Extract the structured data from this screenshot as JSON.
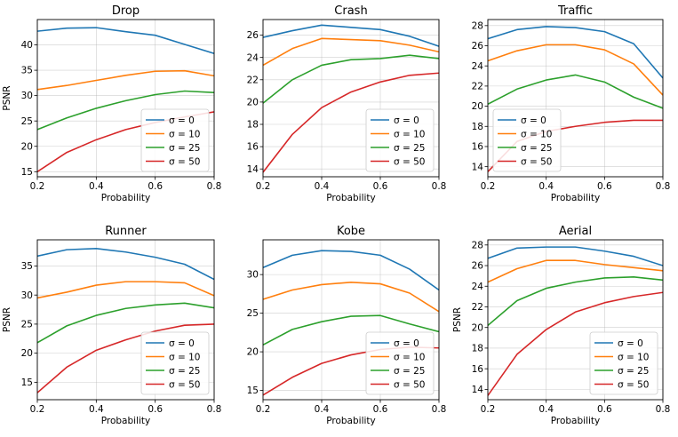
{
  "chart_data": [
    {
      "type": "line",
      "title": "Drop",
      "xlabel": "Probability",
      "ylabel": "PSNR",
      "x": [
        0.2,
        0.3,
        0.4,
        0.5,
        0.6,
        0.7,
        0.8
      ],
      "xticks": [
        "0.2",
        "0.4",
        "0.6",
        "0.8"
      ],
      "yticks": [
        "15",
        "20",
        "25",
        "30",
        "35",
        "40"
      ],
      "xlim": [
        0.2,
        0.8
      ],
      "ylim": [
        14.0,
        45.0
      ],
      "grid": true,
      "legend": "lower-right",
      "series": [
        {
          "name": "σ = 0",
          "color": "#1f77b4",
          "values": [
            42.7,
            43.3,
            43.4,
            42.6,
            41.9,
            40.1,
            38.3
          ]
        },
        {
          "name": "σ = 10",
          "color": "#ff7f0e",
          "values": [
            31.2,
            32.0,
            33.0,
            34.0,
            34.8,
            34.9,
            33.9
          ]
        },
        {
          "name": "σ = 25",
          "color": "#2ca02c",
          "values": [
            23.3,
            25.6,
            27.5,
            29.0,
            30.2,
            30.9,
            30.6
          ]
        },
        {
          "name": "σ = 50",
          "color": "#d62728",
          "values": [
            15.0,
            18.8,
            21.3,
            23.3,
            24.7,
            25.8,
            26.8
          ]
        }
      ]
    },
    {
      "type": "line",
      "title": "Crash",
      "xlabel": "Probability",
      "ylabel": "",
      "x": [
        0.2,
        0.3,
        0.4,
        0.5,
        0.6,
        0.7,
        0.8
      ],
      "xticks": [
        "0.2",
        "0.4",
        "0.6",
        "0.8"
      ],
      "yticks": [
        "14",
        "16",
        "18",
        "20",
        "22",
        "24",
        "26"
      ],
      "xlim": [
        0.2,
        0.8
      ],
      "ylim": [
        13.3,
        27.4
      ],
      "grid": true,
      "legend": "lower-right",
      "series": [
        {
          "name": "σ = 0",
          "color": "#1f77b4",
          "values": [
            25.8,
            26.4,
            26.9,
            26.7,
            26.5,
            25.9,
            25.0
          ]
        },
        {
          "name": "σ = 10",
          "color": "#ff7f0e",
          "values": [
            23.3,
            24.8,
            25.7,
            25.6,
            25.5,
            25.1,
            24.5
          ]
        },
        {
          "name": "σ = 25",
          "color": "#2ca02c",
          "values": [
            19.9,
            22.0,
            23.3,
            23.8,
            23.9,
            24.2,
            23.9
          ]
        },
        {
          "name": "σ = 50",
          "color": "#d62728",
          "values": [
            13.7,
            17.1,
            19.5,
            20.9,
            21.8,
            22.4,
            22.6
          ]
        }
      ]
    },
    {
      "type": "line",
      "title": "Traffic",
      "xlabel": "Probability",
      "ylabel": "",
      "x": [
        0.2,
        0.3,
        0.4,
        0.5,
        0.6,
        0.7,
        0.8
      ],
      "xticks": [
        "0.2",
        "0.4",
        "0.6",
        "0.8"
      ],
      "yticks": [
        "14",
        "16",
        "18",
        "20",
        "22",
        "24",
        "26",
        "28"
      ],
      "xlim": [
        0.2,
        0.8
      ],
      "ylim": [
        13.0,
        28.6
      ],
      "grid": true,
      "legend": "lower-left",
      "series": [
        {
          "name": "σ = 0",
          "color": "#1f77b4",
          "values": [
            26.7,
            27.6,
            27.9,
            27.8,
            27.4,
            26.2,
            22.8
          ]
        },
        {
          "name": "σ = 10",
          "color": "#ff7f0e",
          "values": [
            24.5,
            25.5,
            26.1,
            26.1,
            25.6,
            24.2,
            21.1
          ]
        },
        {
          "name": "σ = 25",
          "color": "#2ca02c",
          "values": [
            20.2,
            21.7,
            22.6,
            23.1,
            22.4,
            20.9,
            19.8
          ]
        },
        {
          "name": "σ = 50",
          "color": "#d62728",
          "values": [
            13.5,
            16.5,
            17.5,
            18.0,
            18.4,
            18.6,
            18.6
          ]
        }
      ]
    },
    {
      "type": "line",
      "title": "Runner",
      "xlabel": "Probability",
      "ylabel": "PSNR",
      "x": [
        0.2,
        0.3,
        0.4,
        0.5,
        0.6,
        0.7,
        0.8
      ],
      "xticks": [
        "0.2",
        "0.4",
        "0.6",
        "0.8"
      ],
      "yticks": [
        "15",
        "20",
        "25",
        "30",
        "35"
      ],
      "xlim": [
        0.2,
        0.8
      ],
      "ylim": [
        12.0,
        39.5
      ],
      "grid": true,
      "legend": "lower-right",
      "series": [
        {
          "name": "σ = 0",
          "color": "#1f77b4",
          "values": [
            36.7,
            37.8,
            38.0,
            37.4,
            36.5,
            35.3,
            32.7
          ]
        },
        {
          "name": "σ = 10",
          "color": "#ff7f0e",
          "values": [
            29.5,
            30.5,
            31.7,
            32.3,
            32.3,
            32.1,
            29.9
          ]
        },
        {
          "name": "σ = 25",
          "color": "#2ca02c",
          "values": [
            21.8,
            24.7,
            26.5,
            27.7,
            28.3,
            28.6,
            27.8
          ]
        },
        {
          "name": "σ = 50",
          "color": "#d62728",
          "values": [
            13.2,
            17.6,
            20.5,
            22.3,
            23.8,
            24.8,
            25.0
          ]
        }
      ]
    },
    {
      "type": "line",
      "title": "Kobe",
      "xlabel": "Probability",
      "ylabel": "",
      "x": [
        0.2,
        0.3,
        0.4,
        0.5,
        0.6,
        0.7,
        0.8
      ],
      "xticks": [
        "0.2",
        "0.4",
        "0.6",
        "0.8"
      ],
      "yticks": [
        "15",
        "20",
        "25",
        "30"
      ],
      "xlim": [
        0.2,
        0.8
      ],
      "ylim": [
        13.8,
        34.5
      ],
      "grid": true,
      "legend": "lower-right",
      "series": [
        {
          "name": "σ = 0",
          "color": "#1f77b4",
          "values": [
            30.9,
            32.5,
            33.1,
            33.0,
            32.5,
            30.7,
            28.0
          ]
        },
        {
          "name": "σ = 10",
          "color": "#ff7f0e",
          "values": [
            26.8,
            28.0,
            28.7,
            29.0,
            28.8,
            27.6,
            25.2
          ]
        },
        {
          "name": "σ = 25",
          "color": "#2ca02c",
          "values": [
            20.9,
            22.9,
            23.9,
            24.6,
            24.7,
            23.6,
            22.6
          ]
        },
        {
          "name": "σ = 50",
          "color": "#d62728",
          "values": [
            14.4,
            16.7,
            18.5,
            19.6,
            20.3,
            20.6,
            20.5
          ]
        }
      ]
    },
    {
      "type": "line",
      "title": "Aerial",
      "xlabel": "Probability",
      "ylabel": "PSNR",
      "x": [
        0.2,
        0.3,
        0.4,
        0.5,
        0.6,
        0.7,
        0.8
      ],
      "xticks": [
        "0.2",
        "0.4",
        "0.6",
        "0.8"
      ],
      "yticks": [
        "14",
        "16",
        "18",
        "20",
        "22",
        "24",
        "26",
        "28"
      ],
      "xlim": [
        0.2,
        0.8
      ],
      "ylim": [
        13.0,
        28.5
      ],
      "grid": true,
      "legend": "lower-right",
      "series": [
        {
          "name": "σ = 0",
          "color": "#1f77b4",
          "values": [
            26.7,
            27.7,
            27.8,
            27.8,
            27.4,
            26.9,
            26.0
          ]
        },
        {
          "name": "σ = 10",
          "color": "#ff7f0e",
          "values": [
            24.4,
            25.7,
            26.5,
            26.5,
            26.1,
            25.8,
            25.5
          ]
        },
        {
          "name": "σ = 25",
          "color": "#2ca02c",
          "values": [
            20.2,
            22.6,
            23.8,
            24.4,
            24.8,
            24.9,
            24.6
          ]
        },
        {
          "name": "σ = 50",
          "color": "#d62728",
          "values": [
            13.4,
            17.4,
            19.8,
            21.5,
            22.4,
            23.0,
            23.4
          ]
        }
      ]
    }
  ]
}
